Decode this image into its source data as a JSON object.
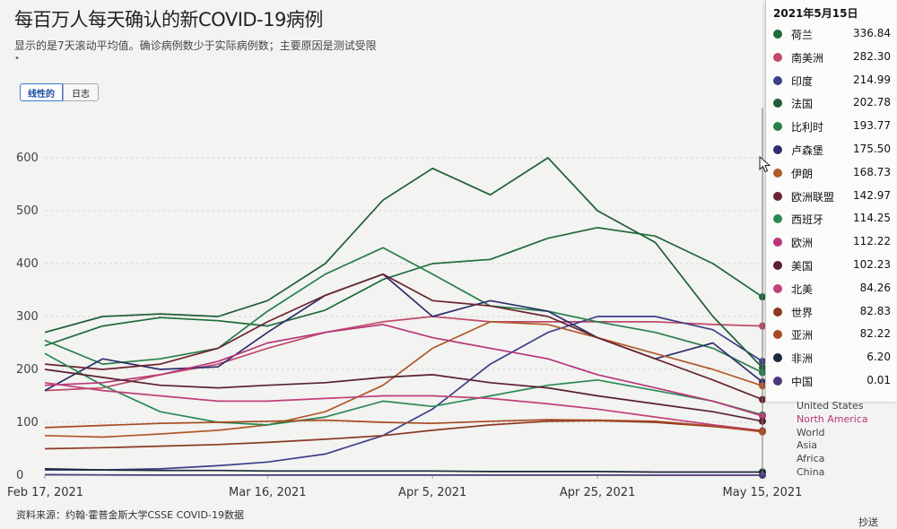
{
  "header": {
    "title": "每百万人每天确认的新COVID-19病例",
    "subtitle": "显示的是7天滚动平均值。确诊病例数少于实际病例数；主要原因是测试受限",
    "marker": "•"
  },
  "toggles": {
    "linear_label": "线性的",
    "log_label": "日志"
  },
  "footer": {
    "source": "资料来源：约翰·霍普金斯大学CSSE COVID-19数据",
    "share": "抄送"
  },
  "tooltip": {
    "date": "2021年5月15日",
    "rows": [
      {
        "name": "荷兰",
        "value": "336.84",
        "color": "#1e6b3a"
      },
      {
        "name": "南美洲",
        "value": "282.30",
        "color": "#c04a6a"
      },
      {
        "name": "印度",
        "value": "214.99",
        "color": "#3d3f8a"
      },
      {
        "name": "法国",
        "value": "202.78",
        "color": "#1f5e36"
      },
      {
        "name": "比利时",
        "value": "193.77",
        "color": "#26804a"
      },
      {
        "name": "卢森堡",
        "value": "175.50",
        "color": "#2e2e6e"
      },
      {
        "name": "伊朗",
        "value": "168.73",
        "color": "#b05a2a"
      },
      {
        "name": "欧洲联盟",
        "value": "142.97",
        "color": "#6b2430"
      },
      {
        "name": "西班牙",
        "value": "114.25",
        "color": "#2a8a55"
      },
      {
        "name": "欧洲",
        "value": "112.22",
        "color": "#b8357a"
      },
      {
        "name": "美国",
        "value": "102.23",
        "color": "#5a2030"
      },
      {
        "name": "北美",
        "value": "84.26",
        "color": "#c0407a"
      },
      {
        "name": "世界",
        "value": "82.83",
        "color": "#8a3a1e"
      },
      {
        "name": "亚洲",
        "value": "82.22",
        "color": "#a84a22"
      },
      {
        "name": "非洲",
        "value": "6.20",
        "color": "#1a2a3a"
      },
      {
        "name": "中国",
        "value": "0.01",
        "color": "#4a3a7a"
      }
    ]
  },
  "chart_data": {
    "type": "line",
    "x": [
      "2021-02-17",
      "2021-02-24",
      "2021-03-03",
      "2021-03-10",
      "2021-03-16",
      "2021-03-23",
      "2021-03-30",
      "2021-04-05",
      "2021-04-12",
      "2021-04-19",
      "2021-04-25",
      "2021-05-02",
      "2021-05-09",
      "2021-05-15"
    ],
    "x_ticks": [
      "Feb 17, 2021",
      "Mar 16, 2021",
      "Apr 5, 2021",
      "Apr 25, 2021",
      "May 15, 2021"
    ],
    "y_ticks": [
      0,
      100,
      200,
      300,
      400,
      500,
      600
    ],
    "ylim": [
      0,
      700
    ],
    "grid": true,
    "series": [
      {
        "name": "荷兰",
        "color": "#1e6b3a",
        "values": [
          245,
          282,
          298,
          292,
          282,
          312,
          370,
          400,
          408,
          448,
          468,
          452,
          400,
          337
        ]
      },
      {
        "name": "南美洲",
        "color": "#c04a6a",
        "values": [
          160,
          165,
          190,
          210,
          240,
          270,
          290,
          300,
          290,
          290,
          290,
          290,
          285,
          282
        ]
      },
      {
        "name": "印度",
        "color": "#3d3f8a",
        "values": [
          10,
          10,
          12,
          18,
          25,
          40,
          75,
          125,
          210,
          270,
          300,
          300,
          275,
          215
        ]
      },
      {
        "name": "法国",
        "color": "#1f5e36",
        "values": [
          270,
          300,
          305,
          300,
          330,
          400,
          520,
          580,
          530,
          600,
          500,
          440,
          300,
          203
        ]
      },
      {
        "name": "比利时",
        "color": "#26804a",
        "values": [
          255,
          210,
          220,
          240,
          310,
          380,
          430,
          380,
          320,
          310,
          290,
          270,
          240,
          194
        ]
      },
      {
        "name": "卢森堡",
        "color": "#2e2e6e",
        "values": [
          160,
          220,
          200,
          205,
          270,
          340,
          380,
          300,
          330,
          310,
          260,
          220,
          250,
          176
        ]
      },
      {
        "name": "伊朗",
        "color": "#b05a2a",
        "values": [
          75,
          72,
          78,
          85,
          95,
          120,
          170,
          240,
          290,
          285,
          260,
          230,
          200,
          169
        ]
      },
      {
        "name": "欧洲联盟",
        "color": "#6b2430",
        "values": [
          210,
          200,
          210,
          240,
          290,
          340,
          380,
          330,
          320,
          300,
          260,
          220,
          180,
          143
        ]
      },
      {
        "name": "西班牙",
        "color": "#2a8a55",
        "values": [
          230,
          170,
          120,
          100,
          95,
          110,
          140,
          130,
          150,
          170,
          180,
          160,
          140,
          114
        ]
      },
      {
        "name": "欧洲",
        "color": "#b8357a",
        "values": [
          170,
          175,
          190,
          215,
          250,
          270,
          285,
          260,
          240,
          220,
          190,
          165,
          140,
          112
        ]
      },
      {
        "name": "美国",
        "color": "#5a2030",
        "values": [
          200,
          185,
          170,
          165,
          170,
          175,
          185,
          190,
          175,
          165,
          150,
          135,
          120,
          102
        ]
      },
      {
        "name": "北美",
        "color": "#c0407a",
        "values": [
          175,
          160,
          150,
          140,
          140,
          145,
          150,
          150,
          145,
          135,
          125,
          110,
          95,
          84
        ]
      },
      {
        "name": "世界",
        "color": "#8a3a1e",
        "values": [
          50,
          52,
          55,
          58,
          62,
          68,
          75,
          85,
          95,
          102,
          103,
          100,
          92,
          83
        ]
      },
      {
        "name": "亚洲",
        "color": "#a84a22",
        "values": [
          90,
          94,
          98,
          100,
          102,
          104,
          100,
          98,
          102,
          105,
          104,
          102,
          93,
          82
        ]
      },
      {
        "name": "非洲",
        "color": "#1a2a3a",
        "values": [
          12,
          10,
          9,
          9,
          8,
          8,
          8,
          8,
          7,
          7,
          7,
          6,
          6,
          6
        ]
      },
      {
        "name": "中国",
        "color": "#4a3a7a",
        "values": [
          1,
          0.5,
          0.2,
          0.1,
          0.1,
          0.1,
          0.1,
          0.1,
          0.1,
          0.1,
          0.1,
          0.05,
          0.02,
          0.01
        ]
      }
    ],
    "end_labels": [
      {
        "text": "United States",
        "value": 102,
        "color": "#444"
      },
      {
        "text": "North America",
        "value": 84,
        "color": "#b8357a"
      },
      {
        "text": "World",
        "value": 83,
        "color": "#444"
      },
      {
        "text": "Asia",
        "value": 82,
        "color": "#444"
      },
      {
        "text": "Africa",
        "value": 6,
        "color": "#444"
      },
      {
        "text": "China",
        "value": 0,
        "color": "#444"
      }
    ]
  }
}
